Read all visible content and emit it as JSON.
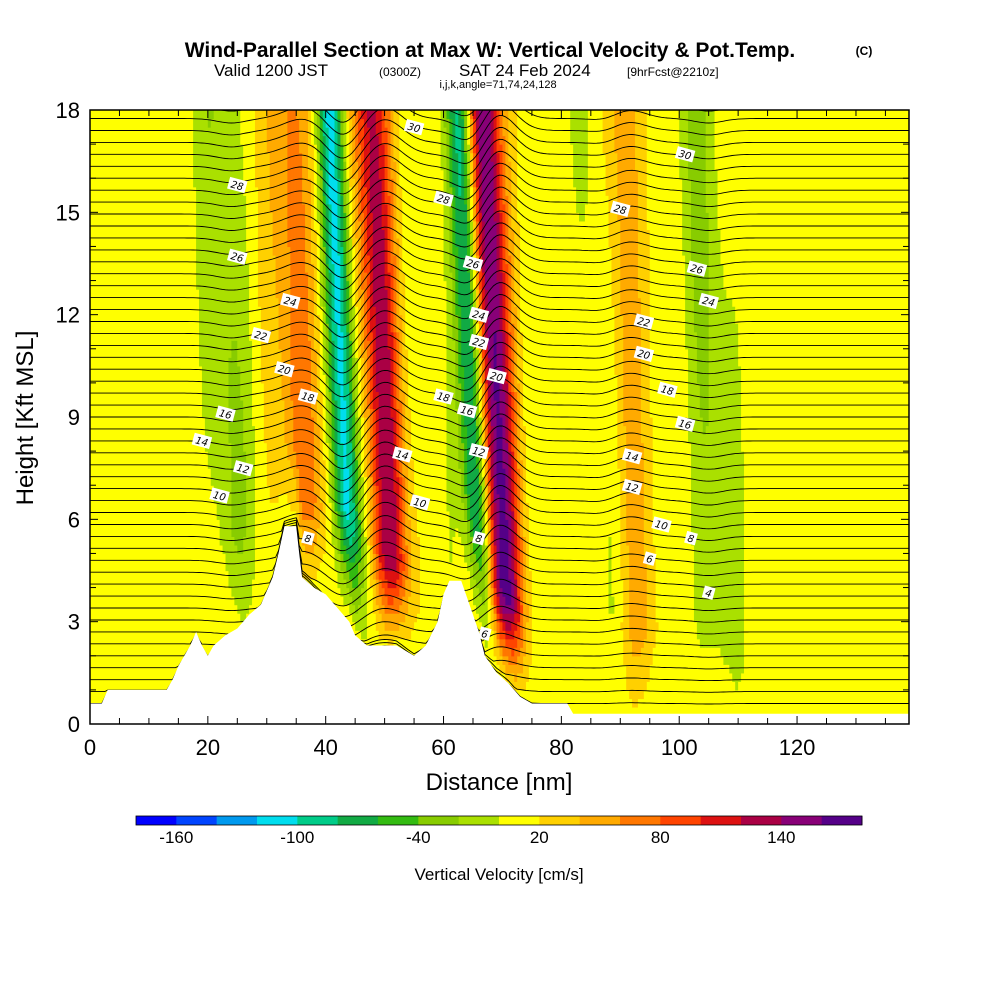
{
  "header": {
    "title_main": "Wind-Parallel Section at Max W: Vertical Velocity & Pot.Temp.",
    "title_copyright": "(C)",
    "valid_prefix": "Valid 1200 JST",
    "valid_utc": "(0300Z)",
    "valid_date": "SAT 24 Feb 2024",
    "forecast_info": "[9hrFcst@2210z]",
    "indices": "i,j,k,angle=71,74,24,128"
  },
  "chart_data": {
    "type": "heatmap",
    "title": "Wind-Parallel Section at Max W: Vertical Velocity & Pot.Temp.",
    "xlabel": "Distance [nm]",
    "ylabel": "Height [Kft MSL]",
    "xlim": [
      0,
      139
    ],
    "ylim": [
      0,
      18
    ],
    "x_ticks": [
      0,
      20,
      40,
      60,
      80,
      100,
      120
    ],
    "y_ticks": [
      0,
      3,
      6,
      9,
      12,
      15,
      18
    ],
    "field": "Vertical Velocity [cm/s]",
    "contour_field": "Potential Temperature",
    "colorbar": {
      "title": "Vertical Velocity [cm/s]",
      "labels": [
        "-160",
        "-100",
        "-40",
        "20",
        "80",
        "140"
      ],
      "label_values": [
        -160,
        -100,
        -40,
        20,
        80,
        140
      ],
      "range": [
        -180,
        180
      ],
      "step": 20,
      "colors": [
        "#0000ff",
        "#0044ff",
        "#0099ee",
        "#00ddee",
        "#00cc88",
        "#11aa44",
        "#33bb11",
        "#88cc00",
        "#aae000",
        "#ffff00",
        "#ffd000",
        "#ffaa00",
        "#ff7700",
        "#ff4400",
        "#dd1111",
        "#aa0044",
        "#880077",
        "#550088"
      ]
    },
    "updraft_columns": [
      {
        "x": 50,
        "w_max": 120
      },
      {
        "x": 69,
        "w_max": 160
      },
      {
        "x": 36,
        "w_max": 60
      },
      {
        "x": 91,
        "w_max": 50
      }
    ],
    "downdraft_columns": [
      {
        "x": 43,
        "w_min": -120
      },
      {
        "x": 65,
        "w_min": -120
      },
      {
        "x": 24,
        "w_min": -30
      },
      {
        "x": 88,
        "w_min": -30
      },
      {
        "x": 105,
        "w_min": -30
      }
    ],
    "terrain_kft": [
      [
        0,
        0.6
      ],
      [
        2,
        0.6
      ],
      [
        3,
        1.0
      ],
      [
        13,
        1.0
      ],
      [
        14,
        1.3
      ],
      [
        15,
        1.7
      ],
      [
        17,
        2.3
      ],
      [
        18,
        2.7
      ],
      [
        19,
        2.3
      ],
      [
        20,
        2.0
      ],
      [
        21,
        2.3
      ],
      [
        23,
        2.6
      ],
      [
        25,
        2.8
      ],
      [
        27,
        3.2
      ],
      [
        29,
        3.5
      ],
      [
        31,
        4.3
      ],
      [
        32,
        5.0
      ],
      [
        33,
        5.8
      ],
      [
        35,
        5.8
      ],
      [
        35.5,
        5.0
      ],
      [
        36,
        4.3
      ],
      [
        38,
        4.0
      ],
      [
        40,
        3.8
      ],
      [
        42,
        3.4
      ],
      [
        44,
        3.0
      ],
      [
        45,
        2.6
      ],
      [
        47,
        2.3
      ],
      [
        52,
        2.3
      ],
      [
        55,
        2.0
      ],
      [
        57,
        2.3
      ],
      [
        59,
        3.0
      ],
      [
        60,
        3.8
      ],
      [
        61,
        4.2
      ],
      [
        63,
        4.2
      ],
      [
        64,
        3.7
      ],
      [
        65,
        3.2
      ],
      [
        66,
        2.7
      ],
      [
        67,
        2.0
      ],
      [
        69,
        1.5
      ],
      [
        71,
        1.2
      ],
      [
        73,
        0.8
      ],
      [
        75,
        0.6
      ],
      [
        81,
        0.6
      ],
      [
        82,
        0.3
      ],
      [
        139,
        0.3
      ]
    ],
    "theta_contours": [
      {
        "label": "4",
        "x": 105,
        "y": 3.85,
        "offset": 3.7
      },
      {
        "label": "6",
        "x": 95,
        "y": 4.85,
        "offset": 4.7
      },
      {
        "label": "6",
        "x": 67,
        "y": 2.65,
        "offset": 4.7
      },
      {
        "label": "8",
        "x": 102,
        "y": 5.45,
        "offset": 5.3
      },
      {
        "label": "8",
        "x": 66,
        "y": 5.45,
        "offset": 5.3
      },
      {
        "label": "8",
        "x": 37,
        "y": 5.45,
        "offset": 5.3
      },
      {
        "label": "10",
        "x": 97,
        "y": 5.85,
        "offset": 5.8
      },
      {
        "label": "10",
        "x": 56,
        "y": 6.5,
        "offset": 5.8
      },
      {
        "label": "10",
        "x": 22,
        "y": 6.7,
        "offset": 5.8
      },
      {
        "label": "12",
        "x": 92,
        "y": 6.95,
        "offset": 6.5
      },
      {
        "label": "12",
        "x": 66,
        "y": 8.0,
        "offset": 6.5
      },
      {
        "label": "12",
        "x": 26,
        "y": 7.5,
        "offset": 6.5
      },
      {
        "label": "14",
        "x": 92,
        "y": 7.85,
        "offset": 7.3
      },
      {
        "label": "14",
        "x": 53,
        "y": 7.9,
        "offset": 7.3
      },
      {
        "label": "14",
        "x": 19,
        "y": 8.3,
        "offset": 7.3
      },
      {
        "label": "16",
        "x": 101,
        "y": 8.8,
        "offset": 8.1
      },
      {
        "label": "16",
        "x": 64,
        "y": 9.2,
        "offset": 8.1
      },
      {
        "label": "16",
        "x": 23,
        "y": 9.1,
        "offset": 8.1
      },
      {
        "label": "18",
        "x": 98,
        "y": 9.8,
        "offset": 9.0
      },
      {
        "label": "18",
        "x": 60,
        "y": 9.6,
        "offset": 9.0
      },
      {
        "label": "18",
        "x": 37,
        "y": 9.6,
        "offset": 9.0
      },
      {
        "label": "20",
        "x": 94,
        "y": 10.85,
        "offset": 10.0
      },
      {
        "label": "20",
        "x": 69,
        "y": 10.2,
        "offset": 10.0
      },
      {
        "label": "20",
        "x": 33,
        "y": 10.4,
        "offset": 10.0
      },
      {
        "label": "22",
        "x": 94,
        "y": 11.8,
        "offset": 11.0
      },
      {
        "label": "22",
        "x": 66,
        "y": 11.2,
        "offset": 11.0
      },
      {
        "label": "22",
        "x": 29,
        "y": 11.4,
        "offset": 11.0
      },
      {
        "label": "24",
        "x": 105,
        "y": 12.4,
        "offset": 12.0
      },
      {
        "label": "24",
        "x": 66,
        "y": 12.0,
        "offset": 12.0
      },
      {
        "label": "24",
        "x": 34,
        "y": 12.4,
        "offset": 12.0
      },
      {
        "label": "26",
        "x": 103,
        "y": 13.35,
        "offset": 13.0
      },
      {
        "label": "26",
        "x": 65,
        "y": 13.5,
        "offset": 13.0
      },
      {
        "label": "26",
        "x": 25,
        "y": 13.7,
        "offset": 13.0
      },
      {
        "label": "28",
        "x": 90,
        "y": 15.1,
        "offset": 14.5
      },
      {
        "label": "28",
        "x": 60,
        "y": 15.4,
        "offset": 14.5
      },
      {
        "label": "28",
        "x": 25,
        "y": 15.8,
        "offset": 14.5
      },
      {
        "label": "30",
        "x": 101,
        "y": 16.7,
        "offset": 16.5
      },
      {
        "label": "30",
        "x": 55,
        "y": 17.5,
        "offset": 16.5
      }
    ]
  },
  "colors": {
    "terrain_fill": "#ffffff",
    "contour_line": "#000000",
    "frame": "#000000",
    "background": "#ffffff"
  }
}
